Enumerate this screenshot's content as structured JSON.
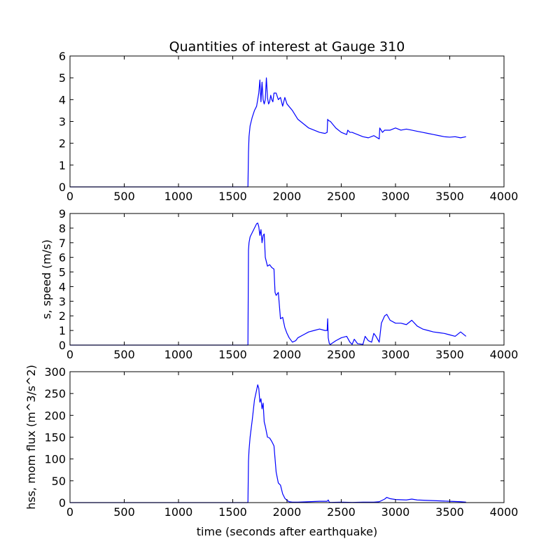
{
  "figure": {
    "title": "Quantities of interest at Gauge 310",
    "xlabel": "time (seconds after earthquake)"
  },
  "colors": {
    "line": "#0000ff",
    "axes": "#000000",
    "background": "#ffffff"
  },
  "chart_data": [
    {
      "type": "line",
      "title": "Quantities of interest at Gauge 310",
      "xlabel": "",
      "ylabel": "",
      "xlim": [
        0,
        4000
      ],
      "ylim": [
        0,
        6
      ],
      "xticks": [
        "0",
        "500",
        "1000",
        "1500",
        "2000",
        "2500",
        "3000",
        "3500",
        "4000"
      ],
      "yticks": [
        "0",
        "1",
        "2",
        "3",
        "4",
        "5",
        "6"
      ],
      "grid": false,
      "series": [
        {
          "x": [
            0,
            1640,
            1645,
            1650,
            1660,
            1680,
            1700,
            1720,
            1740,
            1750,
            1760,
            1770,
            1780,
            1790,
            1800,
            1810,
            1820,
            1830,
            1840,
            1850,
            1860,
            1870,
            1880,
            1900,
            1920,
            1940,
            1960,
            1980,
            2000,
            2050,
            2100,
            2150,
            2200,
            2250,
            2300,
            2350,
            2370,
            2375,
            2380,
            2400,
            2450,
            2500,
            2550,
            2560,
            2580,
            2600,
            2650,
            2700,
            2750,
            2800,
            2850,
            2855,
            2880,
            2900,
            2950,
            3000,
            3050,
            3100,
            3150,
            3200,
            3250,
            3300,
            3350,
            3400,
            3450,
            3500,
            3550,
            3600,
            3650
          ],
          "values": [
            0,
            0,
            1.6,
            2.3,
            2.8,
            3.2,
            3.5,
            3.7,
            4.3,
            4.9,
            3.9,
            4.8,
            4.0,
            3.8,
            4.0,
            5.0,
            4.1,
            3.8,
            3.9,
            4.2,
            4.0,
            3.9,
            4.3,
            4.3,
            4.0,
            4.1,
            3.7,
            4.1,
            3.8,
            3.5,
            3.1,
            2.9,
            2.7,
            2.6,
            2.5,
            2.45,
            2.5,
            3.1,
            3.05,
            3.0,
            2.7,
            2.5,
            2.4,
            2.6,
            2.5,
            2.5,
            2.4,
            2.3,
            2.25,
            2.35,
            2.2,
            2.7,
            2.5,
            2.6,
            2.6,
            2.7,
            2.6,
            2.65,
            2.6,
            2.55,
            2.5,
            2.45,
            2.4,
            2.35,
            2.3,
            2.28,
            2.3,
            2.25,
            2.3
          ]
        }
      ]
    },
    {
      "type": "line",
      "title": "",
      "xlabel": "",
      "ylabel": "s, speed (m/s)",
      "xlim": [
        0,
        4000
      ],
      "ylim": [
        0,
        9
      ],
      "xticks": [
        "0",
        "500",
        "1000",
        "1500",
        "2000",
        "2500",
        "3000",
        "3500",
        "4000"
      ],
      "yticks": [
        "0",
        "1",
        "2",
        "3",
        "4",
        "5",
        "6",
        "7",
        "8",
        "9"
      ],
      "grid": false,
      "series": [
        {
          "x": [
            0,
            1640,
            1645,
            1650,
            1660,
            1680,
            1700,
            1720,
            1730,
            1740,
            1750,
            1760,
            1770,
            1780,
            1790,
            1800,
            1820,
            1840,
            1860,
            1880,
            1890,
            1900,
            1920,
            1940,
            1960,
            1980,
            2000,
            2020,
            2050,
            2080,
            2100,
            2150,
            2200,
            2250,
            2300,
            2350,
            2370,
            2375,
            2380,
            2390,
            2400,
            2450,
            2500,
            2550,
            2580,
            2600,
            2620,
            2650,
            2700,
            2720,
            2750,
            2780,
            2800,
            2820,
            2850,
            2870,
            2900,
            2920,
            2950,
            3000,
            3050,
            3100,
            3150,
            3200,
            3250,
            3300,
            3350,
            3400,
            3450,
            3500,
            3550,
            3600,
            3650
          ],
          "values": [
            0,
            0,
            6.5,
            7.0,
            7.4,
            7.7,
            8.0,
            8.3,
            8.35,
            8.1,
            7.5,
            7.9,
            7.0,
            7.5,
            7.6,
            6.0,
            5.4,
            5.5,
            5.3,
            5.2,
            3.6,
            3.4,
            3.6,
            1.8,
            1.9,
            1.2,
            0.8,
            0.5,
            0.2,
            0.3,
            0.5,
            0.7,
            0.9,
            1.0,
            1.1,
            1.0,
            1.0,
            1.8,
            0.5,
            0.1,
            0.05,
            0.3,
            0.5,
            0.6,
            0.2,
            0.05,
            0.4,
            0.1,
            0.05,
            0.6,
            0.3,
            0.2,
            0.8,
            0.6,
            0.2,
            1.5,
            2.0,
            2.1,
            1.7,
            1.5,
            1.5,
            1.4,
            1.7,
            1.3,
            1.1,
            1.0,
            0.9,
            0.85,
            0.8,
            0.7,
            0.6,
            0.9,
            0.6
          ]
        }
      ]
    },
    {
      "type": "line",
      "title": "",
      "xlabel": "time (seconds after earthquake)",
      "ylabel": "hss, mom flux (m^3/s^2)",
      "xlim": [
        0,
        4000
      ],
      "ylim": [
        0,
        300
      ],
      "xticks": [
        "0",
        "500",
        "1000",
        "1500",
        "2000",
        "2500",
        "3000",
        "3500",
        "4000"
      ],
      "yticks": [
        "0",
        "50",
        "100",
        "150",
        "200",
        "250",
        "300"
      ],
      "grid": false,
      "series": [
        {
          "x": [
            0,
            1640,
            1645,
            1650,
            1660,
            1680,
            1700,
            1720,
            1730,
            1740,
            1750,
            1760,
            1770,
            1780,
            1790,
            1800,
            1820,
            1840,
            1860,
            1880,
            1900,
            1920,
            1940,
            1960,
            1980,
            2000,
            2020,
            2050,
            2100,
            2200,
            2300,
            2370,
            2380,
            2390,
            2400,
            2500,
            2600,
            2700,
            2800,
            2850,
            2900,
            2920,
            2950,
            3000,
            3100,
            3150,
            3200,
            3300,
            3400,
            3500,
            3600,
            3650
          ],
          "values": [
            0,
            0,
            95,
            120,
            150,
            190,
            235,
            258,
            270,
            262,
            230,
            238,
            215,
            228,
            185,
            175,
            150,
            148,
            140,
            130,
            70,
            45,
            40,
            20,
            10,
            5,
            2,
            1,
            1,
            2,
            3,
            3,
            6,
            1,
            0.5,
            1,
            0.5,
            1,
            1,
            2,
            8,
            12,
            9,
            7,
            6,
            8,
            6,
            5,
            4,
            3,
            2,
            1
          ]
        }
      ]
    }
  ]
}
